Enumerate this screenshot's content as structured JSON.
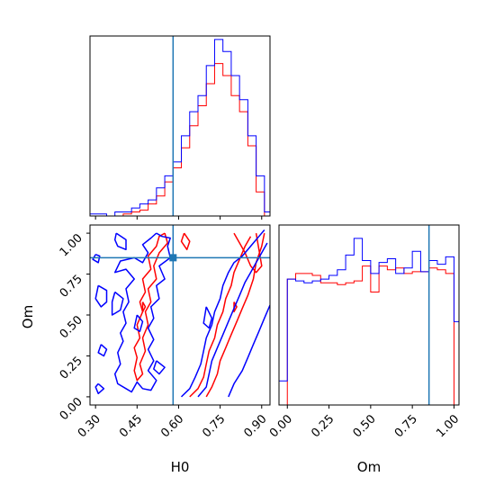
{
  "colors": {
    "blue": "#0000ff",
    "red": "#ff0000",
    "truth": "#1f77b4"
  },
  "chart_data": {
    "type": "corner",
    "parameters": [
      "H0",
      "Om"
    ],
    "truth": {
      "H0": 0.58,
      "Om": 0.85
    },
    "h0_ticks": [
      "0.30",
      "0.45",
      "0.60",
      "0.75",
      "0.90"
    ],
    "om_ticks": [
      "0.00",
      "0.25",
      "0.50",
      "0.75",
      "1.00"
    ],
    "xlabel_h0": "H0",
    "xlabel_om": "Om",
    "ylabel_om": "Om",
    "hist_h0": {
      "xlim": [
        0.28,
        0.93
      ],
      "bin_edges": [
        0.28,
        0.31,
        0.34,
        0.37,
        0.4,
        0.43,
        0.46,
        0.49,
        0.52,
        0.55,
        0.58,
        0.61,
        0.64,
        0.67,
        0.7,
        0.73,
        0.76,
        0.79,
        0.82,
        0.85,
        0.88,
        0.91,
        0.93
      ],
      "blue": [
        1,
        1,
        0,
        2,
        2,
        4,
        6,
        8,
        14,
        20,
        27,
        40,
        52,
        60,
        75,
        88,
        82,
        70,
        58,
        40,
        20,
        2
      ],
      "red": [
        0,
        0,
        0,
        0,
        1,
        2,
        3,
        6,
        10,
        17,
        24,
        34,
        45,
        55,
        66,
        76,
        70,
        60,
        52,
        35,
        12,
        0
      ]
    },
    "hist_om": {
      "xlim": [
        -0.05,
        1.03
      ],
      "bin_edges": [
        -0.05,
        0.0,
        0.05,
        0.1,
        0.15,
        0.2,
        0.25,
        0.3,
        0.35,
        0.4,
        0.45,
        0.5,
        0.55,
        0.6,
        0.65,
        0.7,
        0.75,
        0.8,
        0.85,
        0.9,
        0.95,
        1.0,
        1.03
      ],
      "blue": [
        0.13,
        0.68,
        0.67,
        0.66,
        0.67,
        0.68,
        0.7,
        0.73,
        0.81,
        0.9,
        0.78,
        0.71,
        0.77,
        0.79,
        0.71,
        0.74,
        0.83,
        0.72,
        0.78,
        0.76,
        0.8,
        0.45
      ],
      "red": [
        0,
        0.68,
        0.71,
        0.71,
        0.7,
        0.66,
        0.66,
        0.65,
        0.66,
        0.67,
        0.75,
        0.61,
        0.75,
        0.73,
        0.74,
        0.71,
        0.72,
        0.72,
        0.74,
        0.73,
        0.71,
        0
      ]
    },
    "contours": {
      "xlim": [
        0.28,
        0.93
      ],
      "ylim": [
        -0.05,
        1.05
      ],
      "blue": [
        [
          [
            0.375,
            1.0
          ],
          [
            0.41,
            0.96
          ],
          [
            0.41,
            0.9
          ],
          [
            0.38,
            0.92
          ],
          [
            0.37,
            0.96
          ],
          [
            0.375,
            1.0
          ]
        ],
        [
          [
            0.3,
            0.87
          ],
          [
            0.315,
            0.86
          ],
          [
            0.31,
            0.82
          ],
          [
            0.29,
            0.84
          ],
          [
            0.3,
            0.87
          ]
        ],
        [
          [
            0.52,
            1.0
          ],
          [
            0.54,
            0.98
          ],
          [
            0.57,
            0.97
          ],
          [
            0.56,
            0.92
          ],
          [
            0.57,
            0.85
          ],
          [
            0.53,
            0.8
          ],
          [
            0.55,
            0.72
          ],
          [
            0.52,
            0.68
          ],
          [
            0.53,
            0.6
          ],
          [
            0.5,
            0.55
          ],
          [
            0.51,
            0.48
          ],
          [
            0.49,
            0.42
          ],
          [
            0.51,
            0.35
          ],
          [
            0.49,
            0.29
          ],
          [
            0.51,
            0.22
          ],
          [
            0.49,
            0.16
          ],
          [
            0.52,
            0.1
          ],
          [
            0.5,
            0.04
          ],
          [
            0.47,
            0.05
          ],
          [
            0.45,
            0.09
          ],
          [
            0.43,
            0.03
          ],
          [
            0.41,
            0.05
          ],
          [
            0.38,
            0.08
          ],
          [
            0.37,
            0.14
          ],
          [
            0.39,
            0.2
          ],
          [
            0.38,
            0.27
          ],
          [
            0.4,
            0.34
          ],
          [
            0.39,
            0.39
          ],
          [
            0.41,
            0.45
          ],
          [
            0.4,
            0.52
          ],
          [
            0.42,
            0.58
          ],
          [
            0.41,
            0.66
          ],
          [
            0.44,
            0.72
          ],
          [
            0.41,
            0.78
          ],
          [
            0.37,
            0.76
          ],
          [
            0.39,
            0.83
          ],
          [
            0.44,
            0.85
          ],
          [
            0.47,
            0.82
          ],
          [
            0.49,
            0.88
          ],
          [
            0.47,
            0.93
          ],
          [
            0.5,
            0.97
          ],
          [
            0.52,
            1.0
          ]
        ],
        [
          [
            0.37,
            0.64
          ],
          [
            0.4,
            0.6
          ],
          [
            0.39,
            0.53
          ],
          [
            0.36,
            0.5
          ],
          [
            0.36,
            0.58
          ],
          [
            0.37,
            0.64
          ]
        ],
        [
          [
            0.31,
            0.68
          ],
          [
            0.34,
            0.65
          ],
          [
            0.34,
            0.58
          ],
          [
            0.32,
            0.55
          ],
          [
            0.3,
            0.6
          ],
          [
            0.31,
            0.68
          ]
        ],
        [
          [
            0.45,
            0.5
          ],
          [
            0.47,
            0.46
          ],
          [
            0.46,
            0.4
          ],
          [
            0.44,
            0.42
          ],
          [
            0.45,
            0.5
          ]
        ],
        [
          [
            0.32,
            0.32
          ],
          [
            0.34,
            0.29
          ],
          [
            0.33,
            0.25
          ],
          [
            0.31,
            0.27
          ],
          [
            0.32,
            0.32
          ]
        ],
        [
          [
            0.52,
            0.22
          ],
          [
            0.55,
            0.18
          ],
          [
            0.53,
            0.14
          ],
          [
            0.51,
            0.17
          ],
          [
            0.52,
            0.22
          ]
        ],
        [
          [
            0.31,
            0.08
          ],
          [
            0.33,
            0.05
          ],
          [
            0.31,
            0.02
          ],
          [
            0.3,
            0.06
          ],
          [
            0.31,
            0.08
          ]
        ],
        [
          [
            0.61,
            0.0
          ],
          [
            0.64,
            0.05
          ],
          [
            0.66,
            0.12
          ],
          [
            0.68,
            0.2
          ],
          [
            0.69,
            0.28
          ],
          [
            0.7,
            0.36
          ],
          [
            0.72,
            0.44
          ],
          [
            0.73,
            0.52
          ],
          [
            0.75,
            0.6
          ],
          [
            0.76,
            0.68
          ],
          [
            0.78,
            0.76
          ],
          [
            0.8,
            0.82
          ],
          [
            0.83,
            0.86
          ],
          [
            0.85,
            0.9
          ],
          [
            0.87,
            0.94
          ],
          [
            0.89,
            0.98
          ],
          [
            0.91,
            1.02
          ]
        ],
        [
          [
            0.67,
            0.0
          ],
          [
            0.7,
            0.06
          ],
          [
            0.71,
            0.14
          ],
          [
            0.72,
            0.22
          ],
          [
            0.74,
            0.3
          ],
          [
            0.76,
            0.38
          ],
          [
            0.78,
            0.46
          ],
          [
            0.8,
            0.54
          ],
          [
            0.82,
            0.62
          ],
          [
            0.84,
            0.7
          ],
          [
            0.86,
            0.76
          ],
          [
            0.88,
            0.82
          ],
          [
            0.9,
            0.88
          ],
          [
            0.92,
            0.94
          ]
        ],
        [
          [
            0.78,
            0.0
          ],
          [
            0.8,
            0.08
          ],
          [
            0.83,
            0.16
          ],
          [
            0.85,
            0.24
          ],
          [
            0.87,
            0.32
          ],
          [
            0.89,
            0.4
          ],
          [
            0.91,
            0.48
          ],
          [
            0.93,
            0.56
          ]
        ],
        [
          [
            0.7,
            0.55
          ],
          [
            0.72,
            0.48
          ],
          [
            0.71,
            0.42
          ],
          [
            0.69,
            0.45
          ],
          [
            0.7,
            0.55
          ]
        ]
      ],
      "red": [
        [
          [
            0.55,
            1.0
          ],
          [
            0.56,
            0.94
          ],
          [
            0.53,
            0.88
          ],
          [
            0.51,
            0.8
          ],
          [
            0.52,
            0.72
          ],
          [
            0.49,
            0.66
          ],
          [
            0.5,
            0.58
          ],
          [
            0.48,
            0.52
          ],
          [
            0.49,
            0.44
          ],
          [
            0.47,
            0.36
          ],
          [
            0.48,
            0.28
          ],
          [
            0.46,
            0.2
          ],
          [
            0.47,
            0.14
          ],
          [
            0.45,
            0.1
          ],
          [
            0.44,
            0.16
          ],
          [
            0.45,
            0.24
          ],
          [
            0.44,
            0.3
          ],
          [
            0.46,
            0.36
          ],
          [
            0.45,
            0.44
          ],
          [
            0.47,
            0.52
          ],
          [
            0.46,
            0.58
          ],
          [
            0.48,
            0.64
          ],
          [
            0.47,
            0.72
          ],
          [
            0.5,
            0.78
          ],
          [
            0.49,
            0.86
          ],
          [
            0.52,
            0.92
          ],
          [
            0.53,
            0.98
          ],
          [
            0.55,
            1.0
          ]
        ],
        [
          [
            0.62,
            1.0
          ],
          [
            0.64,
            0.95
          ],
          [
            0.63,
            0.9
          ],
          [
            0.61,
            0.95
          ],
          [
            0.62,
            1.0
          ]
        ],
        [
          [
            0.64,
            0.0
          ],
          [
            0.67,
            0.05
          ],
          [
            0.69,
            0.12
          ],
          [
            0.7,
            0.2
          ],
          [
            0.71,
            0.28
          ],
          [
            0.73,
            0.36
          ],
          [
            0.74,
            0.44
          ],
          [
            0.76,
            0.52
          ],
          [
            0.77,
            0.6
          ],
          [
            0.79,
            0.68
          ],
          [
            0.8,
            0.76
          ],
          [
            0.82,
            0.84
          ],
          [
            0.84,
            0.92
          ],
          [
            0.86,
            0.98
          ]
        ],
        [
          [
            0.7,
            0.0
          ],
          [
            0.72,
            0.06
          ],
          [
            0.74,
            0.14
          ],
          [
            0.75,
            0.22
          ],
          [
            0.77,
            0.3
          ],
          [
            0.79,
            0.38
          ],
          [
            0.81,
            0.46
          ],
          [
            0.83,
            0.54
          ],
          [
            0.85,
            0.62
          ],
          [
            0.87,
            0.72
          ],
          [
            0.88,
            0.82
          ],
          [
            0.9,
            0.92
          ],
          [
            0.91,
            1.0
          ]
        ],
        [
          [
            0.8,
            1.0
          ],
          [
            0.82,
            0.94
          ],
          [
            0.84,
            0.88
          ],
          [
            0.86,
            0.8
          ],
          [
            0.88,
            0.76
          ],
          [
            0.9,
            0.8
          ],
          [
            0.89,
            0.9
          ],
          [
            0.88,
            1.0
          ]
        ],
        [
          [
            0.8,
            0.58
          ],
          [
            0.81,
            0.55
          ],
          [
            0.8,
            0.52
          ],
          [
            0.8,
            0.58
          ]
        ],
        [
          [
            0.47,
            0.58
          ],
          [
            0.48,
            0.55
          ],
          [
            0.47,
            0.52
          ],
          [
            0.47,
            0.58
          ]
        ]
      ]
    }
  }
}
